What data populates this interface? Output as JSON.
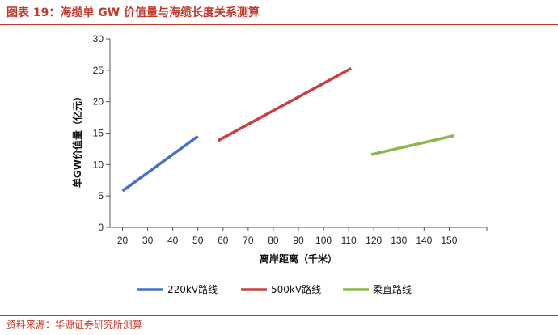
{
  "header": {
    "title": "图表 19：海缆单 GW 价值量与海缆长度关系测算"
  },
  "footer": {
    "source": "资料来源：华源证券研究所测算"
  },
  "chart_data": {
    "type": "line",
    "title": "",
    "xlabel": "离岸距离（千米）",
    "ylabel": "单GW价值量（亿元）",
    "x_ticks": [
      20,
      30,
      40,
      50,
      60,
      70,
      80,
      90,
      100,
      110,
      120,
      130,
      140,
      150
    ],
    "y_ticks": [
      0,
      5,
      10,
      15,
      20,
      25,
      30
    ],
    "xlim": [
      15,
      165
    ],
    "ylim": [
      0,
      30
    ],
    "grid": false,
    "legend_position": "bottom",
    "series": [
      {
        "name": "220kV路线",
        "color": "#4472c4",
        "x": [
          20,
          50
        ],
        "y": [
          5.8,
          14.5
        ]
      },
      {
        "name": "500kV路线",
        "color": "#c94040",
        "x": [
          58,
          111
        ],
        "y": [
          13.8,
          25.3
        ]
      },
      {
        "name": "柔直路线",
        "color": "#8ab84a",
        "x": [
          119,
          152
        ],
        "y": [
          11.6,
          14.6
        ]
      }
    ]
  }
}
